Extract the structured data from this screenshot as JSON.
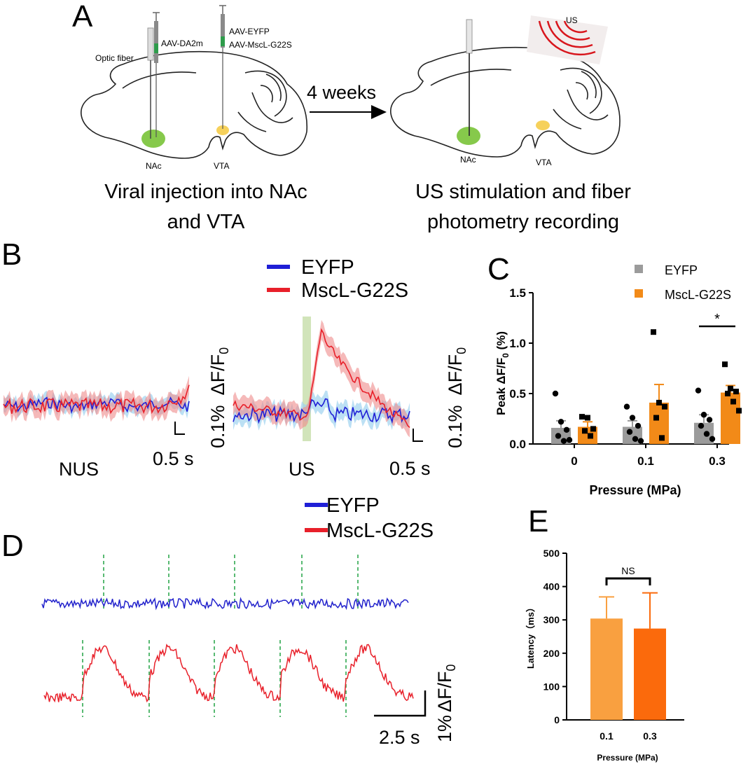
{
  "panelA": {
    "letter": "A",
    "optic_fiber": "Optic fiber",
    "aav_da2m": "AAV-DA2m",
    "aav_eyfp": "AAV-EYFP",
    "aav_mscl": "AAV-MscL-G22S",
    "nac_left": "NAc",
    "vta_left": "VTA",
    "weeks": "4 weeks",
    "us": "US",
    "nac_right": "NAc",
    "vta_right": "VTA",
    "caption_left": [
      "Viral injection into NAc",
      "and VTA"
    ],
    "caption_right": [
      "US stimulation and fiber",
      "photometry recording"
    ]
  },
  "panelB": {
    "letter": "B",
    "legend": [
      "EYFP",
      "MscL-G22S"
    ],
    "colors": {
      "eyfp": "#1f1fd6",
      "mscl": "#e8202a",
      "eyfp_band": "#9fd3ef",
      "mscl_band": "#ef8a8a",
      "us_bar": "#c9dfae"
    },
    "scale_y": "0.1% ΔF/F0",
    "scale_y_text": "0.1%",
    "scale_y_unit": "ΔF/F",
    "scale_y_sub": "0",
    "scale_x": "0.5 s",
    "left_label": "NUS",
    "right_label": "US"
  },
  "panelD": {
    "letter": "D",
    "legend": [
      "EYFP",
      "MscL-G22S"
    ],
    "scale_y_text": "1%",
    "scale_y_unit": "ΔF/F",
    "scale_y_sub": "0",
    "scale_x": "2.5 s",
    "stim_marker_color": "#2fa84f"
  },
  "chart_data": [
    {
      "panel": "C",
      "type": "bar",
      "letter": "C",
      "categories": [
        "0",
        "0.1",
        "0.3"
      ],
      "xlabel": "Pressure (MPa)",
      "ylabel": "Peak ΔF/F0 (%)",
      "ylabel_main": "Peak ΔF/F",
      "ylabel_sub": "0",
      "ylabel_tail": " (%)",
      "ylim": [
        0,
        1.5
      ],
      "yticks": [
        "0.0",
        "0.5",
        "1.0",
        "1.5"
      ],
      "legend_position": "top-right",
      "series": [
        {
          "name": "EYFP",
          "color": "#9b9b9b",
          "values": [
            0.16,
            0.17,
            0.21
          ],
          "errors": [
            0.07,
            0.06,
            0.08
          ],
          "points": [
            [
              0.5,
              0.22,
              0.14,
              0.08,
              0.03,
              0.04
            ],
            [
              0.37,
              0.26,
              0.18,
              0.12,
              0.05,
              0.03
            ],
            [
              0.53,
              0.29,
              0.24,
              0.18,
              0.1,
              0.05
            ]
          ]
        },
        {
          "name": "MscL-G22S",
          "color": "#f28a18",
          "values": [
            0.17,
            0.41,
            0.51
          ],
          "errors": [
            0.05,
            0.18,
            0.07
          ],
          "points": [
            [
              0.27,
              0.26,
              0.15,
              0.13,
              0.08
            ],
            [
              1.11,
              0.41,
              0.37,
              0.26,
              0.06
            ],
            [
              0.79,
              0.55,
              0.52,
              0.5,
              0.42,
              0.33
            ]
          ]
        }
      ],
      "significance": {
        "label": "*",
        "category": "0.3"
      }
    },
    {
      "panel": "E",
      "type": "bar",
      "letter": "E",
      "categories": [
        "0.1",
        "0.3"
      ],
      "values": [
        304,
        274
      ],
      "errors": [
        65,
        107
      ],
      "colors": [
        "#f9a040",
        "#fb6a0c"
      ],
      "xlabel": "Pressure (MPa)",
      "ylabel": "Latency（ms）",
      "ylim": [
        0,
        500
      ],
      "yticks": [
        "0",
        "100",
        "200",
        "300",
        "400",
        "500"
      ],
      "significance": {
        "label": "NS"
      }
    }
  ]
}
